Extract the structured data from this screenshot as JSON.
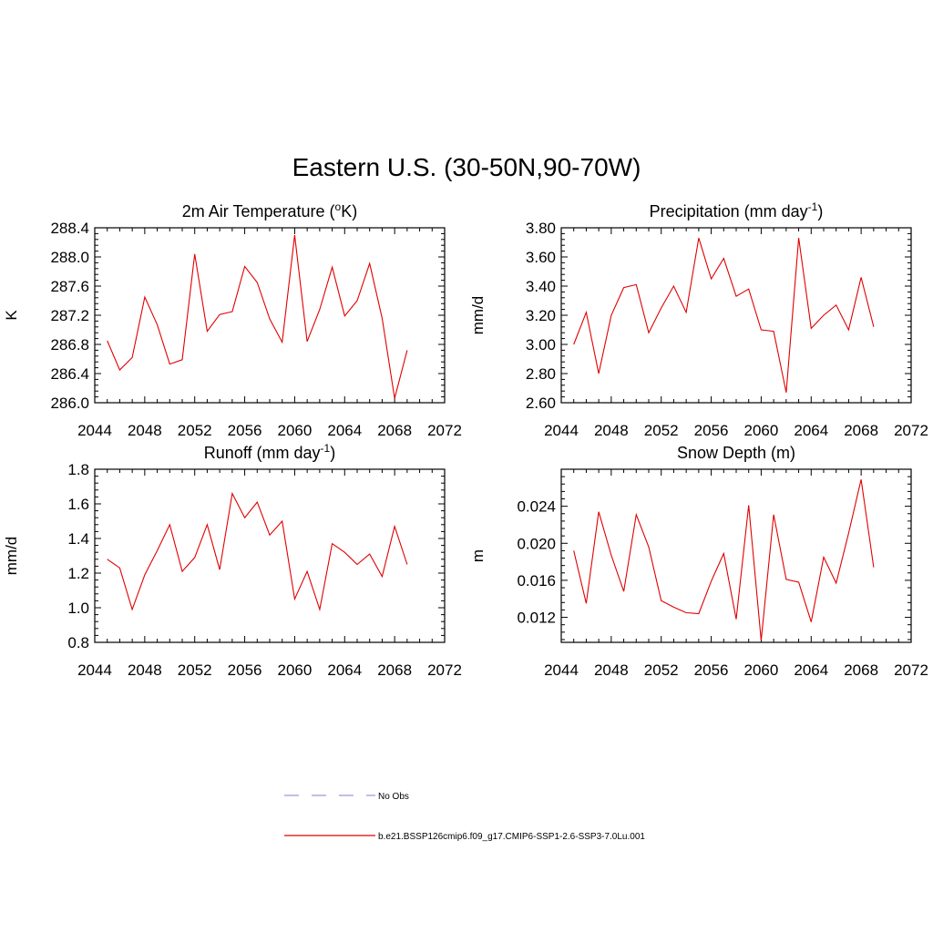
{
  "title": "Eastern U.S. (30-50N,90-70W)",
  "colors": {
    "model": "#e00000",
    "obs": "#9999dd",
    "axis": "#000000"
  },
  "legend": {
    "obs_label": "No Obs",
    "model_label": "b.e21.BSSP126cmip6.f09_g17.CMIP6-SSP1-2.6-SSP3-7.0Lu.001"
  },
  "chart_data": [
    {
      "type": "line",
      "title": "2m Air Temperature (°K)",
      "title_main": "2m Air Temperature (",
      "title_sup": "o",
      "title_tail": "K)",
      "ylabel": "K",
      "xlim": [
        2044,
        2072
      ],
      "ylim": [
        286.0,
        288.4
      ],
      "xticks": [
        2044,
        2048,
        2052,
        2056,
        2060,
        2064,
        2068,
        2072
      ],
      "yticks": [
        286.0,
        286.4,
        286.8,
        287.2,
        287.6,
        288.0,
        288.4
      ],
      "ytick_labels": [
        "286.0",
        "286.4",
        "286.8",
        "287.2",
        "287.6",
        "288.0",
        "288.4"
      ],
      "x": [
        2045,
        2046,
        2047,
        2048,
        2049,
        2050,
        2051,
        2052,
        2053,
        2054,
        2055,
        2056,
        2057,
        2058,
        2059,
        2060,
        2061,
        2062,
        2063,
        2064,
        2065,
        2066,
        2067,
        2068,
        2069
      ],
      "values": [
        286.85,
        286.45,
        286.62,
        287.45,
        287.07,
        286.53,
        286.59,
        288.04,
        286.98,
        287.21,
        287.25,
        287.87,
        287.65,
        287.15,
        286.83,
        288.3,
        286.84,
        287.28,
        287.86,
        287.19,
        287.4,
        287.91,
        287.16,
        286.06,
        286.72
      ]
    },
    {
      "type": "line",
      "title": "Precipitation (mm day-1)",
      "title_main": "Precipitation (mm day",
      "title_sup": "-1",
      "title_tail": ")",
      "ylabel": "mm/d",
      "xlim": [
        2044,
        2072
      ],
      "ylim": [
        2.6,
        3.8
      ],
      "xticks": [
        2044,
        2048,
        2052,
        2056,
        2060,
        2064,
        2068,
        2072
      ],
      "yticks": [
        2.6,
        2.8,
        3.0,
        3.2,
        3.4,
        3.6,
        3.8
      ],
      "ytick_labels": [
        "2.60",
        "2.80",
        "3.00",
        "3.20",
        "3.40",
        "3.60",
        "3.80"
      ],
      "x": [
        2045,
        2046,
        2047,
        2048,
        2049,
        2050,
        2051,
        2052,
        2053,
        2054,
        2055,
        2056,
        2057,
        2058,
        2059,
        2060,
        2061,
        2062,
        2063,
        2064,
        2065,
        2066,
        2067,
        2068,
        2069
      ],
      "values": [
        3.0,
        3.22,
        2.8,
        3.2,
        3.39,
        3.41,
        3.08,
        3.25,
        3.4,
        3.22,
        3.73,
        3.45,
        3.59,
        3.33,
        3.38,
        3.1,
        3.09,
        2.67,
        3.73,
        3.11,
        3.2,
        3.27,
        3.1,
        3.46,
        3.12
      ]
    },
    {
      "type": "line",
      "title": "Runoff (mm day-1)",
      "title_main": "Runoff (mm day",
      "title_sup": "-1",
      "title_tail": ")",
      "ylabel": "mm/d",
      "xlim": [
        2044,
        2072
      ],
      "ylim": [
        0.8,
        1.8
      ],
      "xticks": [
        2044,
        2048,
        2052,
        2056,
        2060,
        2064,
        2068,
        2072
      ],
      "yticks": [
        0.8,
        1.0,
        1.2,
        1.4,
        1.6,
        1.8
      ],
      "ytick_labels": [
        "0.8",
        "1.0",
        "1.2",
        "1.4",
        "1.6",
        "1.8"
      ],
      "x": [
        2045,
        2046,
        2047,
        2048,
        2049,
        2050,
        2051,
        2052,
        2053,
        2054,
        2055,
        2056,
        2057,
        2058,
        2059,
        2060,
        2061,
        2062,
        2063,
        2064,
        2065,
        2066,
        2067,
        2068,
        2069
      ],
      "values": [
        1.28,
        1.23,
        0.99,
        1.19,
        1.33,
        1.48,
        1.21,
        1.29,
        1.48,
        1.22,
        1.66,
        1.52,
        1.61,
        1.42,
        1.5,
        1.05,
        1.21,
        0.99,
        1.37,
        1.32,
        1.25,
        1.31,
        1.18,
        1.47,
        1.25
      ]
    },
    {
      "type": "line",
      "title": "Snow Depth (m)",
      "title_main": "Snow Depth (m)",
      "title_sup": "",
      "title_tail": "",
      "ylabel": "m",
      "xlim": [
        2044,
        2072
      ],
      "ylim": [
        0.0093,
        0.028
      ],
      "xticks": [
        2044,
        2048,
        2052,
        2056,
        2060,
        2064,
        2068,
        2072
      ],
      "yticks": [
        0.012,
        0.016,
        0.02,
        0.024
      ],
      "ytick_labels": [
        "0.012",
        "0.016",
        "0.020",
        "0.024"
      ],
      "x": [
        2045,
        2046,
        2047,
        2048,
        2049,
        2050,
        2051,
        2052,
        2053,
        2054,
        2055,
        2056,
        2057,
        2058,
        2059,
        2060,
        2061,
        2062,
        2063,
        2064,
        2065,
        2066,
        2067,
        2068,
        2069
      ],
      "values": [
        0.0192,
        0.0135,
        0.0234,
        0.0187,
        0.0148,
        0.0231,
        0.0196,
        0.0138,
        0.0131,
        0.0125,
        0.0124,
        0.0159,
        0.0189,
        0.0118,
        0.0241,
        0.0095,
        0.0231,
        0.0161,
        0.0158,
        0.0115,
        0.0185,
        0.0157,
        0.0211,
        0.0269,
        0.0174
      ]
    }
  ]
}
